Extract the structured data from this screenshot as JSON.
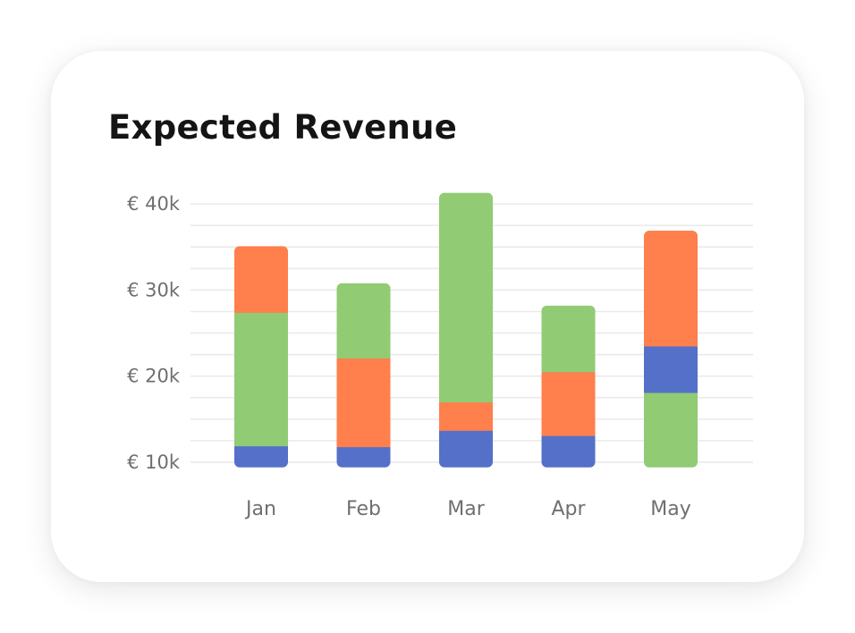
{
  "card": {
    "title": "Expected Revenue"
  },
  "chart_data": {
    "type": "bar",
    "stacked": true,
    "title": "Expected Revenue",
    "xlabel": "",
    "ylabel": "",
    "categories": [
      "Jan",
      "Feb",
      "Mar",
      "Apr",
      "May"
    ],
    "y_ticks": [
      {
        "value": 10,
        "label": "€ 10k"
      },
      {
        "value": 20,
        "label": "€ 20k"
      },
      {
        "value": 30,
        "label": "€ 30k"
      },
      {
        "value": 40,
        "label": "€ 40k"
      }
    ],
    "ylim": [
      10,
      40
    ],
    "grid": true,
    "gridline_step": 2.5,
    "legend": "none",
    "colors": {
      "blue": "#5470C9",
      "green": "#91CB74",
      "orange": "#FF7F4D",
      "grid": "#E9E9E9"
    },
    "stacks": [
      {
        "category": "Jan",
        "segments": [
          {
            "color": "blue",
            "from": 9.4,
            "to": 11.9
          },
          {
            "color": "green",
            "from": 11.9,
            "to": 27.4
          },
          {
            "color": "orange",
            "from": 27.4,
            "to": 35.1
          }
        ]
      },
      {
        "category": "Feb",
        "segments": [
          {
            "color": "blue",
            "from": 9.4,
            "to": 11.8
          },
          {
            "color": "orange",
            "from": 11.8,
            "to": 22.1
          },
          {
            "color": "green",
            "from": 22.1,
            "to": 30.8
          }
        ]
      },
      {
        "category": "Mar",
        "segments": [
          {
            "color": "blue",
            "from": 9.4,
            "to": 13.7
          },
          {
            "color": "orange",
            "from": 13.7,
            "to": 17.0
          },
          {
            "color": "green",
            "from": 17.0,
            "to": 41.3
          }
        ]
      },
      {
        "category": "Apr",
        "segments": [
          {
            "color": "blue",
            "from": 9.4,
            "to": 13.1
          },
          {
            "color": "orange",
            "from": 13.1,
            "to": 20.5
          },
          {
            "color": "green",
            "from": 20.5,
            "to": 28.2
          }
        ]
      },
      {
        "category": "May",
        "segments": [
          {
            "color": "green",
            "from": 9.4,
            "to": 18.1
          },
          {
            "color": "blue",
            "from": 18.1,
            "to": 23.5
          },
          {
            "color": "orange",
            "from": 23.5,
            "to": 36.9
          }
        ]
      }
    ]
  }
}
